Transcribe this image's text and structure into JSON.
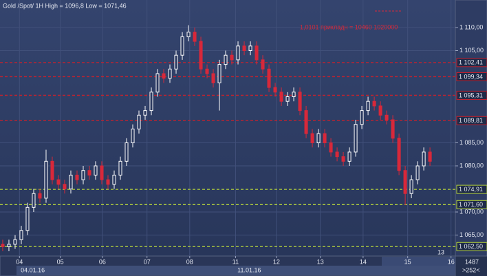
{
  "chart_data": {
    "type": "candlestick",
    "title": "Gold /Spot/  1H High = 1096,8 Low = 1071,46",
    "annotation": "1,0101 прикладн = 10460 1020000",
    "corner_label": "13",
    "right_info": [
      "1487",
      ">252<"
    ],
    "open": [
      1063,
      1062.5,
      1063,
      1064,
      1066,
      1071,
      1074,
      1073,
      1081,
      1077,
      1076,
      1075,
      1078,
      1077,
      1079,
      1078,
      1080,
      1077,
      1076,
      1078,
      1081,
      1085,
      1088,
      1091,
      1092,
      1096,
      1100,
      1099,
      1101,
      1104,
      1108,
      1109,
      1107,
      1101,
      1100,
      1098,
      1102,
      1104,
      1103,
      1106,
      1105,
      1106,
      1103,
      1101,
      1097,
      1096,
      1094,
      1095,
      1096,
      1092,
      1087,
      1085,
      1087,
      1085,
      1083,
      1082,
      1081,
      1083,
      1089,
      1092,
      1094,
      1093,
      1091,
      1090,
      1086,
      1079,
      1074,
      1077,
      1080,
      1083
    ],
    "high": [
      1064,
      1064,
      1065,
      1067,
      1072,
      1075,
      1075,
      1083.5,
      1082,
      1078,
      1077,
      1079,
      1079,
      1080,
      1080,
      1081,
      1081,
      1078,
      1079,
      1082,
      1086,
      1089,
      1092,
      1093,
      1097,
      1101,
      1101,
      1102,
      1105,
      1109,
      1110.5,
      1110,
      1108,
      1102,
      1101,
      1103,
      1105,
      1105,
      1107,
      1107,
      1107,
      1107,
      1104,
      1102,
      1098,
      1097,
      1096,
      1097,
      1097,
      1093,
      1088,
      1088,
      1088,
      1086,
      1084,
      1083,
      1084,
      1090,
      1093,
      1095,
      1095,
      1094,
      1092,
      1091,
      1087,
      1080,
      1078,
      1081,
      1084,
      1084
    ],
    "low": [
      1061.5,
      1061.5,
      1062,
      1063,
      1065,
      1070,
      1072,
      1072,
      1076,
      1075,
      1074,
      1074,
      1076,
      1076,
      1077,
      1077,
      1076,
      1075,
      1075,
      1077,
      1080,
      1084,
      1087,
      1090,
      1091,
      1095,
      1098,
      1098,
      1100,
      1103,
      1107,
      1106,
      1100,
      1099,
      1097,
      1092,
      1101,
      1102,
      1102,
      1104,
      1104,
      1102,
      1100,
      1096,
      1095,
      1093,
      1093,
      1094,
      1091,
      1086,
      1084,
      1084,
      1084,
      1082,
      1081,
      1080,
      1080,
      1082,
      1088,
      1091,
      1092,
      1090,
      1089,
      1085,
      1078,
      1071.5,
      1073,
      1076,
      1079,
      1080
    ],
    "close": [
      1062.5,
      1063,
      1064,
      1066,
      1071,
      1074,
      1073,
      1081,
      1077,
      1076,
      1075,
      1078,
      1077,
      1079,
      1078,
      1080,
      1077,
      1076,
      1078,
      1081,
      1085,
      1088,
      1091,
      1092,
      1096,
      1100,
      1099,
      1101,
      1104,
      1108,
      1109,
      1107,
      1101,
      1100,
      1098,
      1102,
      1104,
      1103,
      1106,
      1105,
      1106,
      1103,
      1101,
      1097,
      1096,
      1094,
      1095,
      1096,
      1092,
      1087,
      1085,
      1087,
      1085,
      1083,
      1082,
      1081,
      1083,
      1089,
      1092,
      1094,
      1093,
      1091,
      1090,
      1086,
      1079,
      1074,
      1077,
      1080,
      1083,
      1081
    ],
    "up_color": "#ffffff",
    "down_color": "#d8283a",
    "ylim": [
      1060.45,
      1115.97
    ],
    "yticks": [
      {
        "value": 1110,
        "label": "1 110,00"
      },
      {
        "value": 1105,
        "label": "1 105,00"
      },
      {
        "value": 1085,
        "label": "1 085,00"
      },
      {
        "value": 1080,
        "label": "1 080,00"
      },
      {
        "value": 1070,
        "label": "1 070,00"
      },
      {
        "value": 1065,
        "label": "1 065,00"
      }
    ],
    "xlim": [
      -0.44,
      73.1
    ],
    "xticks": [
      {
        "value": 2.7,
        "label": "04"
      },
      {
        "value": 9.3,
        "label": "05"
      },
      {
        "value": 16.1,
        "label": "06"
      },
      {
        "value": 23.3,
        "label": "07"
      },
      {
        "value": 30.2,
        "label": "08"
      },
      {
        "value": 37.6,
        "label": "11"
      },
      {
        "value": 44.2,
        "label": "12"
      },
      {
        "value": 51.3,
        "label": "13"
      },
      {
        "value": 58.2,
        "label": "14"
      },
      {
        "value": 65.4,
        "label": "15"
      },
      {
        "value": 72.4,
        "label": "16"
      }
    ],
    "date_labels": [
      {
        "value": 2.9,
        "label": "04.01.16"
      },
      {
        "value": 37.9,
        "label": "11.01.16"
      }
    ],
    "levels": [
      {
        "value": 1102.41,
        "label": "1 102,41",
        "color": "#c8202c"
      },
      {
        "value": 1099.34,
        "label": "1 099,34",
        "color": "#c8202c"
      },
      {
        "value": 1095.31,
        "label": "1 095,31",
        "color": "#c8202c"
      },
      {
        "value": 1089.81,
        "label": "1 089,81",
        "color": "#c8202c"
      },
      {
        "value": 1074.91,
        "label": "1 074,91",
        "color": "#b4d23c"
      },
      {
        "value": 1071.6,
        "label": "1 071,60",
        "color": "#b4d23c"
      },
      {
        "value": 1062.5,
        "label": "1 062,50",
        "color": "#b4d23c"
      }
    ],
    "grid": true
  }
}
